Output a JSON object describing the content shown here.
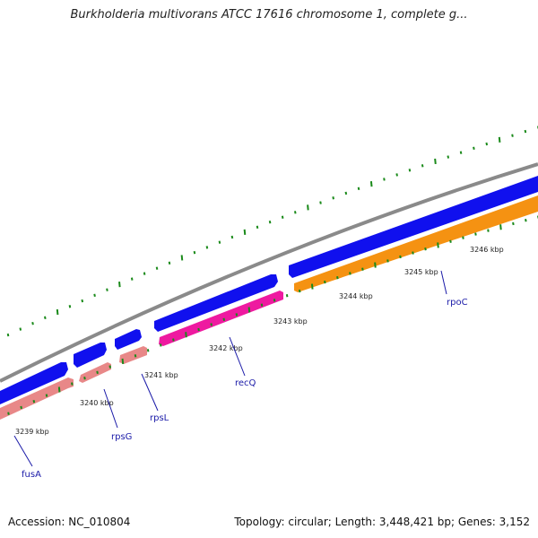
{
  "title": "Burkholderia multivorans ATCC 17616 chromosome 1, complete g...",
  "footer": {
    "accession": "Accession: NC_010804",
    "summary": "Topology: circular; Length: 3,448,421 bp; Genes: 3,152"
  },
  "colors": {
    "backbone": "#8a8a8a",
    "forward_cds": "#1010ee",
    "fusA": "#e88888",
    "rpsG": "#e88888",
    "rpsL": "#e88888",
    "recQ": "#ee1aa0",
    "rpoC": "#f59212",
    "ticks": "#1a8a1a",
    "labels": "#1a1aa8"
  },
  "kbp_labels": [
    "3239 kbp",
    "3240 kbp",
    "3241 kbp",
    "3242 kbp",
    "3243 kbp",
    "3244 kbp",
    "3245 kbp",
    "3246 kbp"
  ],
  "genes": [
    "fusA",
    "rpsG",
    "rpsL",
    "recQ",
    "rpoC"
  ]
}
